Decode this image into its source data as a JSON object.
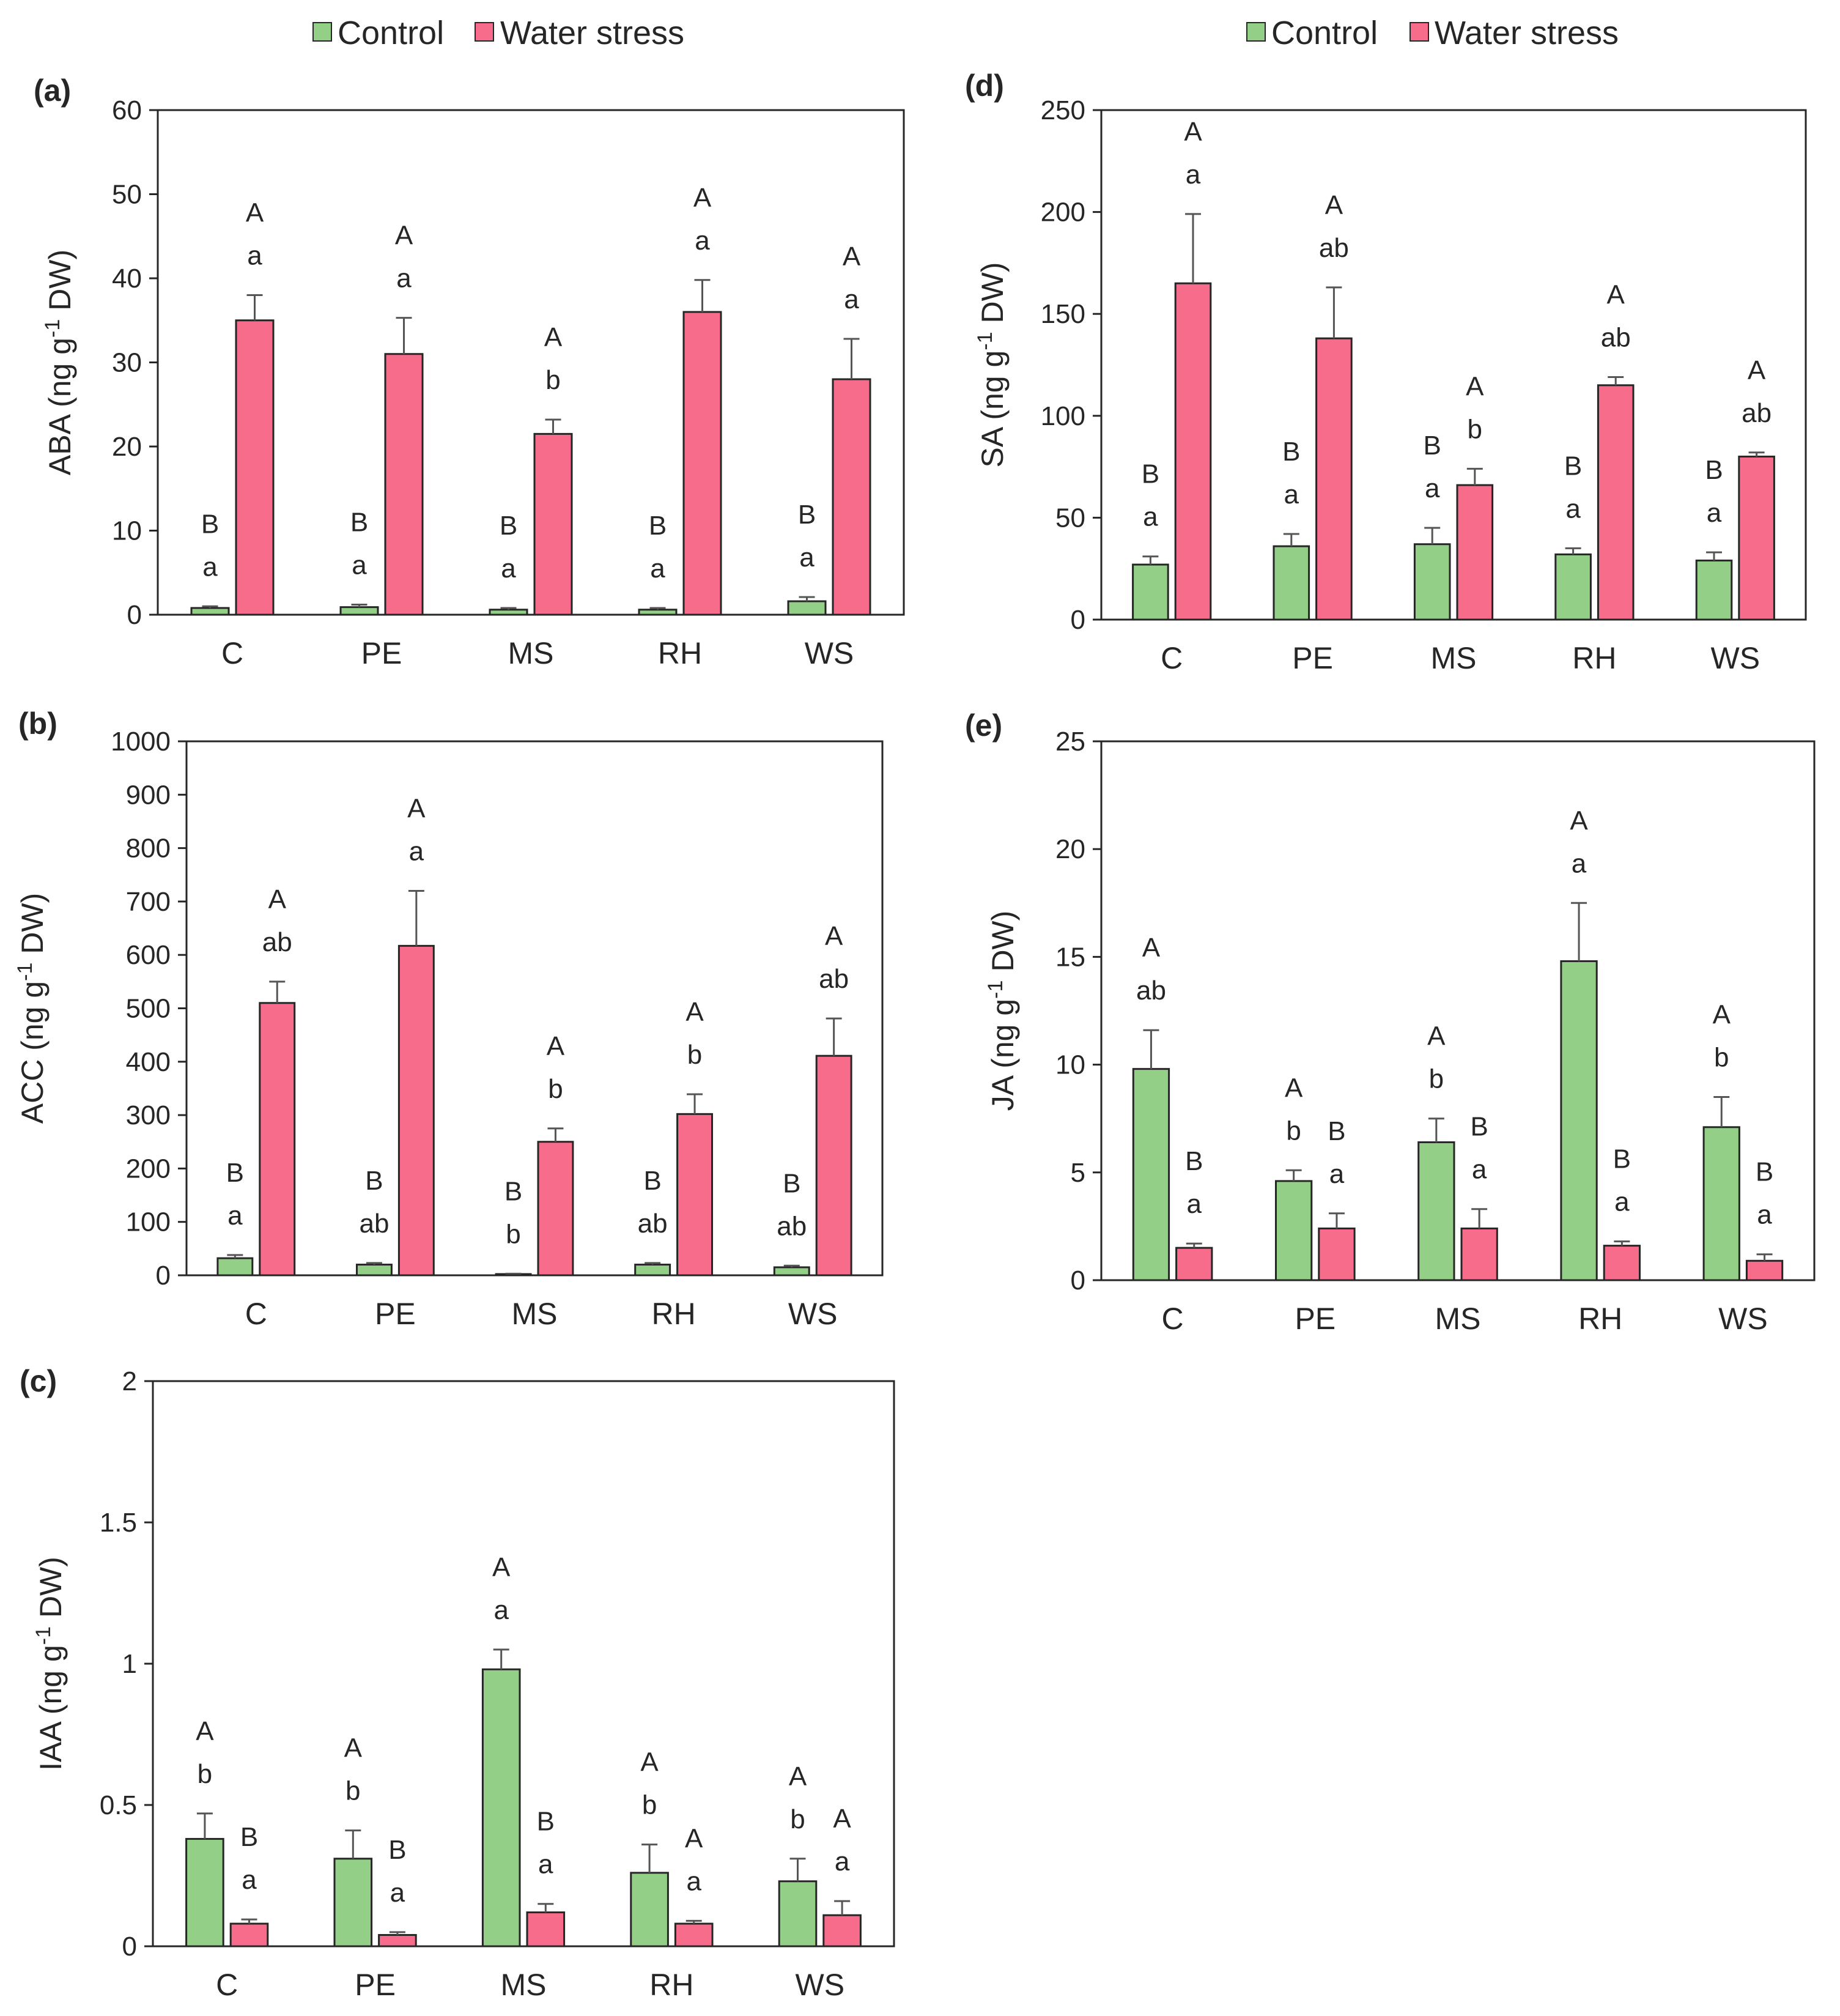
{
  "colors": {
    "control": "#93cf87",
    "water_stress": "#f76c8a",
    "axis": "#262626",
    "error": "#555555"
  },
  "legend": {
    "control": "Control",
    "water_stress": "Water stress"
  },
  "chart_data": [
    {
      "id": "a",
      "panel_label": "(a)",
      "type": "bar",
      "ylabel": "ABA (ng g-1 DW)",
      "ylabel_pre": "ABA (ng g",
      "ylabel_sup": "-1",
      "ylabel_post": " DW)",
      "ylim": [
        0,
        60
      ],
      "yticks": [
        0,
        10,
        20,
        30,
        40,
        50,
        60
      ],
      "yticklabels": [
        "0",
        "10",
        "20",
        "30",
        "40",
        "50",
        "60"
      ],
      "categories": [
        "C",
        "PE",
        "MS",
        "RH",
        "WS"
      ],
      "series": [
        {
          "name": "Control",
          "values": [
            0.8,
            0.9,
            0.6,
            0.6,
            1.6
          ],
          "errors": [
            0.2,
            0.3,
            0.2,
            0.2,
            0.5
          ],
          "letters_upper": [
            "B",
            "B",
            "B",
            "B",
            "B"
          ],
          "letters_lower": [
            "a",
            "a",
            "a",
            "a",
            "a"
          ]
        },
        {
          "name": "Water stress",
          "values": [
            35,
            31,
            21.5,
            36,
            28
          ],
          "errors": [
            3,
            4.3,
            1.7,
            3.8,
            4.8
          ],
          "letters_upper": [
            "A",
            "A",
            "A",
            "A",
            "A"
          ],
          "letters_lower": [
            "a",
            "a",
            "b",
            "a",
            "a"
          ]
        }
      ]
    },
    {
      "id": "b",
      "panel_label": "(b)",
      "type": "bar",
      "ylabel": "ACC (ng g-1 DW)",
      "ylabel_pre": "ACC (ng g",
      "ylabel_sup": "-1",
      "ylabel_post": " DW)",
      "ylim": [
        0,
        1000
      ],
      "yticks": [
        0,
        100,
        200,
        300,
        400,
        500,
        600,
        700,
        800,
        900,
        1000
      ],
      "yticklabels": [
        "0",
        "100",
        "200",
        "300",
        "400",
        "500",
        "600",
        "700",
        "800",
        "900",
        "1000"
      ],
      "categories": [
        "C",
        "PE",
        "MS",
        "RH",
        "WS"
      ],
      "series": [
        {
          "name": "Control",
          "values": [
            32,
            20,
            2,
            20,
            15
          ],
          "errors": [
            6,
            3,
            1,
            3,
            3
          ],
          "letters_upper": [
            "B",
            "B",
            "B",
            "B",
            "B"
          ],
          "letters_lower": [
            "a",
            "ab",
            "b",
            "ab",
            "ab"
          ]
        },
        {
          "name": "Water stress",
          "values": [
            510,
            617,
            250,
            302,
            411
          ],
          "errors": [
            40,
            103,
            25,
            37,
            70
          ],
          "letters_upper": [
            "A",
            "A",
            "A",
            "A",
            "A"
          ],
          "letters_lower": [
            "ab",
            "a",
            "b",
            "b",
            "ab"
          ]
        }
      ]
    },
    {
      "id": "c",
      "panel_label": "(c)",
      "type": "bar",
      "ylabel": "IAA (ng g-1 DW)",
      "ylabel_pre": "IAA (ng g",
      "ylabel_sup": "-1",
      "ylabel_post": " DW)",
      "ylim": [
        0,
        2
      ],
      "yticks": [
        0,
        0.5,
        1,
        1.5,
        2
      ],
      "yticklabels": [
        "0",
        "0.5",
        "1",
        "1.5",
        "2"
      ],
      "categories": [
        "C",
        "PE",
        "MS",
        "RH",
        "WS"
      ],
      "series": [
        {
          "name": "Control",
          "values": [
            0.38,
            0.31,
            0.98,
            0.26,
            0.23
          ],
          "errors": [
            0.09,
            0.1,
            0.07,
            0.1,
            0.08
          ],
          "letters_upper": [
            "A",
            "A",
            "A",
            "A",
            "A"
          ],
          "letters_lower": [
            "b",
            "b",
            "a",
            "b",
            "b"
          ]
        },
        {
          "name": "Water stress",
          "values": [
            0.08,
            0.04,
            0.12,
            0.08,
            0.11
          ],
          "errors": [
            0.015,
            0.01,
            0.03,
            0.01,
            0.05
          ],
          "letters_upper": [
            "B",
            "B",
            "B",
            "A",
            "A"
          ],
          "letters_lower": [
            "a",
            "a",
            "a",
            "a",
            "a"
          ]
        }
      ]
    },
    {
      "id": "d",
      "panel_label": "(d)",
      "type": "bar",
      "ylabel": "SA (ng g-1 DW)",
      "ylabel_pre": "SA (ng g",
      "ylabel_sup": "-1",
      "ylabel_post": " DW)",
      "ylim": [
        0,
        250
      ],
      "yticks": [
        0,
        50,
        100,
        150,
        200,
        250
      ],
      "yticklabels": [
        "0",
        "50",
        "100",
        "150",
        "200",
        "250"
      ],
      "categories": [
        "C",
        "PE",
        "MS",
        "RH",
        "WS"
      ],
      "series": [
        {
          "name": "Control",
          "values": [
            27,
            36,
            37,
            32,
            29
          ],
          "errors": [
            4,
            6,
            8,
            3,
            4
          ],
          "letters_upper": [
            "B",
            "B",
            "B",
            "B",
            "B"
          ],
          "letters_lower": [
            "a",
            "a",
            "a",
            "a",
            "a"
          ]
        },
        {
          "name": "Water stress",
          "values": [
            165,
            138,
            66,
            115,
            80
          ],
          "errors": [
            34,
            25,
            8,
            4,
            2
          ],
          "letters_upper": [
            "A",
            "A",
            "A",
            "A",
            "A"
          ],
          "letters_lower": [
            "a",
            "ab",
            "b",
            "ab",
            "ab"
          ]
        }
      ]
    },
    {
      "id": "e",
      "panel_label": "(e)",
      "type": "bar",
      "ylabel": "JA (ng g-1 DW)",
      "ylabel_pre": "JA (ng g",
      "ylabel_sup": "-1",
      "ylabel_post": " DW)",
      "ylim": [
        0,
        25
      ],
      "yticks": [
        0,
        5,
        10,
        15,
        20,
        25
      ],
      "yticklabels": [
        "0",
        "5",
        "10",
        "15",
        "20",
        "25"
      ],
      "categories": [
        "C",
        "PE",
        "MS",
        "RH",
        "WS"
      ],
      "series": [
        {
          "name": "Control",
          "values": [
            9.8,
            4.6,
            6.4,
            14.8,
            7.1
          ],
          "errors": [
            1.8,
            0.5,
            1.1,
            2.7,
            1.4
          ],
          "letters_upper": [
            "A",
            "A",
            "A",
            "A",
            "A"
          ],
          "letters_lower": [
            "ab",
            "b",
            "b",
            "a",
            "b"
          ]
        },
        {
          "name": "Water stress",
          "values": [
            1.5,
            2.4,
            2.4,
            1.6,
            0.9
          ],
          "errors": [
            0.2,
            0.7,
            0.9,
            0.2,
            0.3
          ],
          "letters_upper": [
            "B",
            "B",
            "B",
            "B",
            "B"
          ],
          "letters_lower": [
            "a",
            "a",
            "a",
            "a",
            "a"
          ]
        }
      ]
    }
  ]
}
